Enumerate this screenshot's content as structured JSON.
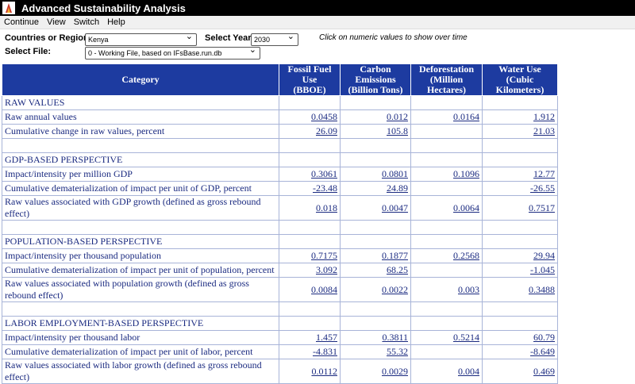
{
  "title": "Advanced Sustainability Analysis",
  "menu": [
    "Continue",
    "View",
    "Switch",
    "Help"
  ],
  "controls": {
    "region_label": "Countries or Regions",
    "region": "Kenya",
    "year_label": "Select Year",
    "year": "2030",
    "hint": "Click on numeric values to show over time",
    "file_label": "Select File:",
    "file": "0 - Working File, based on IFsBase.run.db"
  },
  "table": {
    "headers": [
      [
        "Category"
      ],
      [
        "Fossil Fuel Use",
        "(BBOE)"
      ],
      [
        "Carbon Emissions",
        "(Billion Tons)"
      ],
      [
        "Deforestation",
        "(Million Hectares)"
      ],
      [
        "Water Use",
        "(Cubic Kilometers)"
      ]
    ],
    "sections": [
      {
        "title": "RAW VALUES",
        "rows": [
          {
            "label": "Raw annual values",
            "values": [
              0.0458,
              0.012,
              0.0164,
              1.912
            ]
          },
          {
            "label": "Cumulative change in raw values, percent",
            "values": [
              26.09,
              105.8,
              null,
              21.03
            ]
          }
        ]
      },
      {
        "title": "GDP-BASED PERSPECTIVE",
        "rows": [
          {
            "label": "Impact/intensity per million GDP",
            "values": [
              0.3061,
              0.0801,
              0.1096,
              12.77
            ]
          },
          {
            "label": "Cumulative dematerialization of impact per unit of GDP, percent",
            "values": [
              -23.48,
              24.89,
              null,
              -26.55
            ]
          },
          {
            "label": "Raw values associated with GDP growth (defined as gross rebound effect)",
            "values": [
              0.018,
              0.0047,
              0.0064,
              0.7517
            ]
          }
        ]
      },
      {
        "title": "POPULATION-BASED PERSPECTIVE",
        "rows": [
          {
            "label": "Impact/intensity per thousand population",
            "values": [
              0.7175,
              0.1877,
              0.2568,
              29.94
            ]
          },
          {
            "label": "Cumulative dematerialization of impact per unit of population, percent",
            "values": [
              3.092,
              68.25,
              null,
              -1.045
            ]
          },
          {
            "label": "Raw values associated with population growth (defined as gross rebound effect)",
            "values": [
              0.0084,
              0.0022,
              0.003,
              0.3488
            ]
          }
        ]
      },
      {
        "title": "LABOR EMPLOYMENT-BASED PERSPECTIVE",
        "rows": [
          {
            "label": "Impact/intensity per thousand labor",
            "values": [
              1.457,
              0.3811,
              0.5214,
              60.79
            ]
          },
          {
            "label": "Cumulative dematerialization of impact per unit of labor, percent",
            "values": [
              -4.831,
              55.32,
              null,
              -8.649
            ]
          },
          {
            "label": "Raw values associated with labor growth (defined as gross rebound effect)",
            "values": [
              0.0112,
              0.0029,
              0.004,
              0.469
            ]
          }
        ]
      }
    ]
  }
}
